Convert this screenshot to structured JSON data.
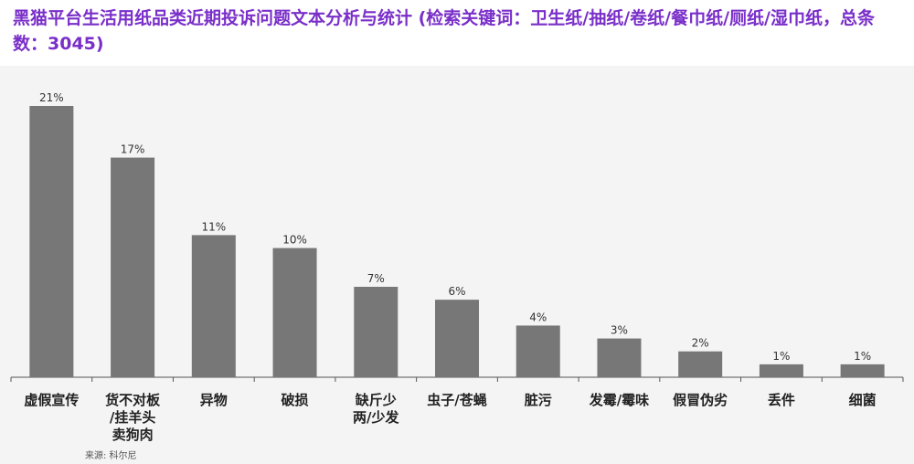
{
  "title": "黑猫平台生活用纸品类近期投诉问题文本分析与统计 (检索关键词：卫生纸/抽纸/卷纸/餐巾纸/厕纸/湿巾纸，总条数：3045)",
  "source": "来源: 科尔尼",
  "colors": {
    "title": "#7a2fc9",
    "bar": "#777777",
    "axis": "#555555",
    "background": "#f4f4f4"
  },
  "chart_data": {
    "type": "bar",
    "categories": [
      "虚假宣传",
      "货不对板/挂羊头卖狗肉",
      "异物",
      "破损",
      "缺斤少两/少发",
      "虫子/苍蝇",
      "脏污",
      "发霉/霉味",
      "假冒伪劣",
      "丢件",
      "细菌"
    ],
    "category_lines": [
      [
        "虚假宣传"
      ],
      [
        "货不对板",
        "/挂羊头",
        "卖狗肉"
      ],
      [
        "异物"
      ],
      [
        "破损"
      ],
      [
        "缺斤少",
        "两/少发"
      ],
      [
        "虫子/苍蝇"
      ],
      [
        "脏污"
      ],
      [
        "发霉/霉味"
      ],
      [
        "假冒伪劣"
      ],
      [
        "丢件"
      ],
      [
        "细菌"
      ]
    ],
    "values": [
      21,
      17,
      11,
      10,
      7,
      6,
      4,
      3,
      2,
      1,
      1
    ],
    "data_labels": [
      "21%",
      "17%",
      "11%",
      "10%",
      "7%",
      "6%",
      "4%",
      "3%",
      "2%",
      "1%",
      "1%"
    ],
    "unit": "%",
    "ylim": [
      0,
      21
    ],
    "grid": false,
    "legend": "none",
    "xlabel": "",
    "ylabel": ""
  }
}
